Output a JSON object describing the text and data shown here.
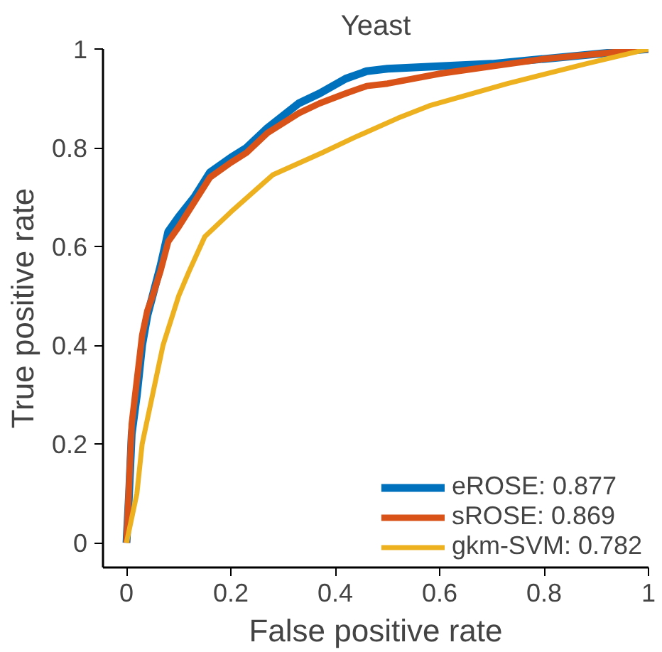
{
  "chart_data": {
    "type": "line",
    "title": "Yeast",
    "xlabel": "False positive rate",
    "ylabel": "True positive rate",
    "xlim": [
      -0.045,
      1
    ],
    "ylim": [
      -0.05,
      1
    ],
    "xticks": [
      0,
      0.2,
      0.4,
      0.6,
      0.8,
      1
    ],
    "yticks": [
      0,
      0.2,
      0.4,
      0.6,
      0.8,
      1
    ],
    "grid": false,
    "legend": "bottom right",
    "series": [
      {
        "name": "eROSE: 0.877",
        "color": "#0072bd",
        "x": [
          0,
          0.005,
          0.01,
          0.02,
          0.03,
          0.04,
          0.05,
          0.065,
          0.08,
          0.1,
          0.13,
          0.16,
          0.2,
          0.23,
          0.27,
          0.33,
          0.37,
          0.42,
          0.46,
          0.5,
          0.6,
          0.7,
          0.8,
          0.9,
          1
        ],
        "values": [
          0,
          0.1,
          0.22,
          0.3,
          0.4,
          0.46,
          0.5,
          0.56,
          0.63,
          0.66,
          0.7,
          0.75,
          0.78,
          0.8,
          0.84,
          0.89,
          0.91,
          0.94,
          0.955,
          0.96,
          0.965,
          0.97,
          0.98,
          0.99,
          1
        ]
      },
      {
        "name": "sROSE: 0.869",
        "color": "#d95319",
        "x": [
          0,
          0.005,
          0.01,
          0.02,
          0.03,
          0.04,
          0.05,
          0.065,
          0.08,
          0.1,
          0.13,
          0.16,
          0.2,
          0.23,
          0.27,
          0.33,
          0.37,
          0.42,
          0.46,
          0.5,
          0.6,
          0.7,
          0.8,
          0.9,
          1
        ],
        "values": [
          0,
          0.12,
          0.24,
          0.33,
          0.42,
          0.47,
          0.5,
          0.55,
          0.61,
          0.64,
          0.69,
          0.74,
          0.77,
          0.79,
          0.83,
          0.87,
          0.89,
          0.91,
          0.925,
          0.93,
          0.95,
          0.965,
          0.98,
          0.99,
          1
        ]
      },
      {
        "name": "gkm-SVM: 0.782",
        "color": "#edb120",
        "x": [
          0,
          0.01,
          0.02,
          0.03,
          0.05,
          0.07,
          0.1,
          0.12,
          0.15,
          0.2,
          0.28,
          0.375,
          0.435,
          0.52,
          0.58,
          0.73,
          0.88,
          1
        ],
        "values": [
          0,
          0.05,
          0.1,
          0.2,
          0.3,
          0.4,
          0.5,
          0.55,
          0.62,
          0.67,
          0.745,
          0.79,
          0.82,
          0.86,
          0.885,
          0.93,
          0.97,
          1
        ]
      }
    ]
  }
}
